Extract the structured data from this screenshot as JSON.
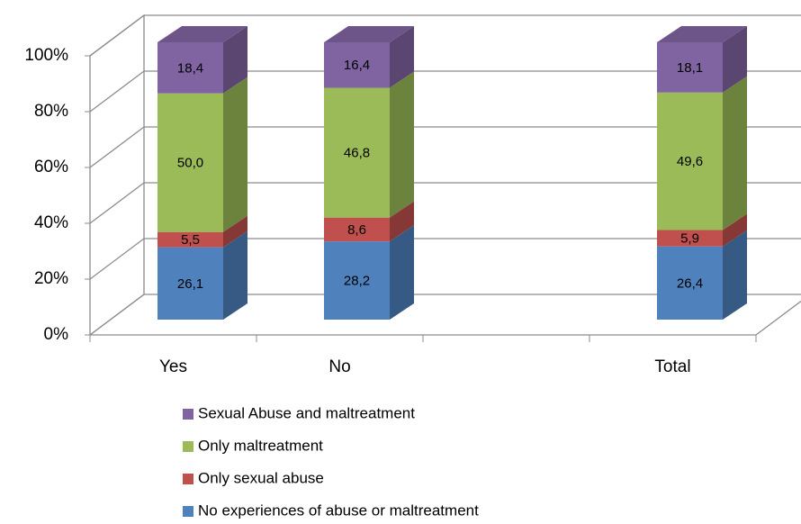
{
  "chart_data": {
    "type": "bar3d_stacked",
    "categories": [
      "Yes",
      "No",
      null,
      "Total"
    ],
    "series": [
      {
        "name": "No experiences of abuse or maltreatment",
        "color": "#4f81bd",
        "values": [
          26.1,
          28.2,
          null,
          26.4
        ],
        "value_labels": [
          "26,1",
          "28,2",
          null,
          "26,4"
        ]
      },
      {
        "name": "Only sexual abuse",
        "color": "#c0504d",
        "values": [
          5.5,
          8.6,
          null,
          5.9
        ],
        "value_labels": [
          "5,5",
          "8,6",
          null,
          "5,9"
        ]
      },
      {
        "name": "Only maltreatment",
        "color": "#9bbb59",
        "values": [
          50.0,
          46.8,
          null,
          49.6
        ],
        "value_labels": [
          "50,0",
          "46,8",
          null,
          "49,6"
        ]
      },
      {
        "name": "Sexual Abuse and maltreatment",
        "color": "#8064a2",
        "values": [
          18.4,
          16.4,
          null,
          18.1
        ],
        "value_labels": [
          "18,4",
          "16,4",
          null,
          "18,1"
        ]
      }
    ],
    "ylim": [
      0,
      100
    ],
    "yticks": [
      {
        "value": 0,
        "label": "0%"
      },
      {
        "value": 20,
        "label": "20%"
      },
      {
        "value": 40,
        "label": "40%"
      },
      {
        "value": 60,
        "label": "60%"
      },
      {
        "value": 80,
        "label": "80%"
      },
      {
        "value": 100,
        "label": "100%"
      }
    ],
    "grid": true,
    "legend": "bottom"
  }
}
